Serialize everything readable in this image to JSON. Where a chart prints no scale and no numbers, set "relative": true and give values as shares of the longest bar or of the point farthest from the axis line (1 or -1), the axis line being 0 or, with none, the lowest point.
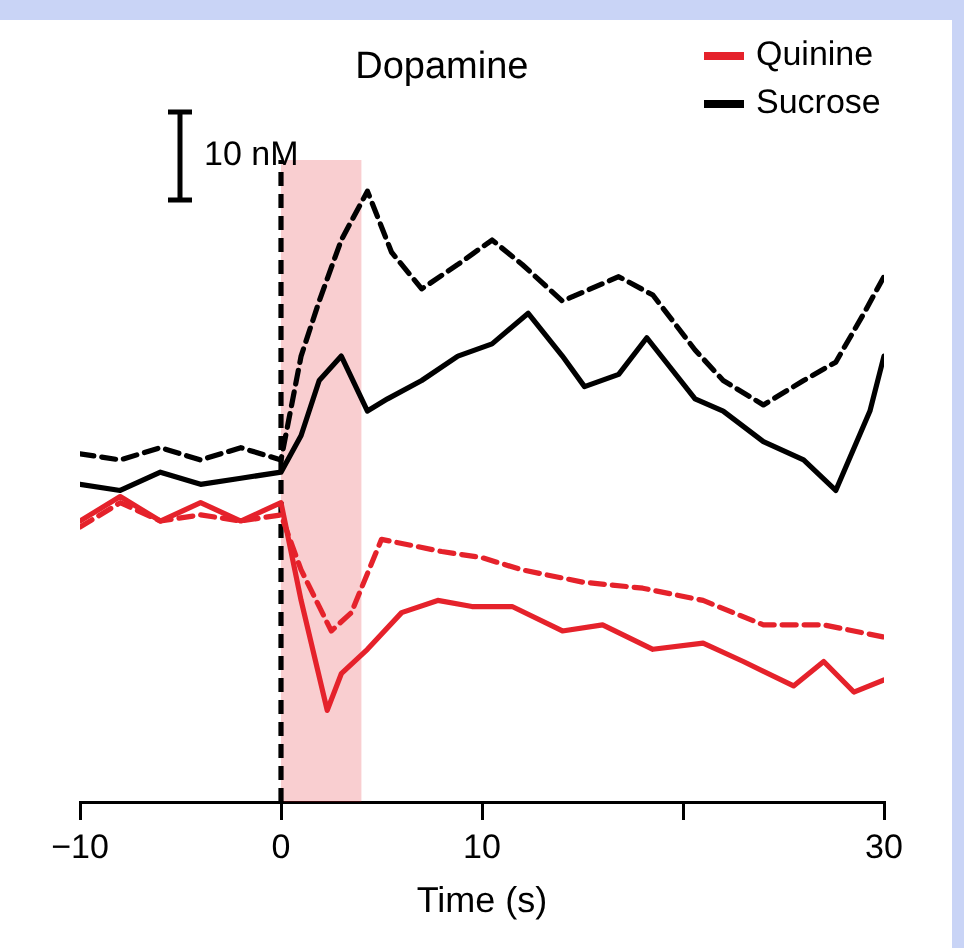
{
  "chart_data": {
    "type": "line",
    "title": "Dopamine",
    "xlabel": "Time (s)",
    "relative": true,
    "xlim": [
      -10,
      30
    ],
    "xticks": [
      {
        "value": -10,
        "label": "−10"
      },
      0,
      10,
      {
        "value": 20,
        "label": null
      },
      30
    ],
    "legend": "top right",
    "annotations": [
      "10 nM"
    ],
    "ref_lines": [
      {
        "axis": "x",
        "value": 0,
        "color": "#000000",
        "line_style": "dashed"
      }
    ],
    "bands": [
      {
        "axis": "x",
        "from": 0,
        "to": 4,
        "color": "#e5222b"
      }
    ],
    "series": [
      {
        "name": "Quinine",
        "color": "#e5222b",
        "line_style": "solid",
        "x": [
          -10,
          -8,
          -6,
          -4,
          -2,
          0,
          1,
          2.3,
          3,
          4.3,
          6,
          7.8,
          9.5,
          11.5,
          14,
          16,
          18.5,
          21,
          23,
          25.5,
          27,
          28.5,
          30
        ],
        "values": [
          0.46,
          0.5,
          0.46,
          0.49,
          0.46,
          0.49,
          0.33,
          0.15,
          0.21,
          0.25,
          0.31,
          0.33,
          0.32,
          0.32,
          0.28,
          0.29,
          0.25,
          0.26,
          0.23,
          0.19,
          0.23,
          0.18,
          0.2
        ]
      },
      {
        "color": "#e5222b",
        "line_style": "dashed",
        "x": [
          -10,
          -8,
          -6,
          -4,
          -2,
          0,
          1,
          2.5,
          3.5,
          5,
          8,
          10,
          12,
          15,
          18,
          21,
          24,
          27,
          30
        ],
        "values": [
          0.45,
          0.49,
          0.46,
          0.47,
          0.46,
          0.47,
          0.38,
          0.28,
          0.31,
          0.43,
          0.41,
          0.4,
          0.38,
          0.36,
          0.35,
          0.33,
          0.29,
          0.29,
          0.27
        ]
      },
      {
        "name": "Sucrose",
        "color": "#000000",
        "line_style": "solid",
        "x": [
          -10,
          -8,
          -6,
          -4,
          -2,
          0,
          1,
          1.9,
          3,
          4.3,
          5.3,
          7,
          8.8,
          10.5,
          12.3,
          14,
          15.1,
          16.8,
          18.2,
          20.6,
          22,
          24,
          26,
          27.6,
          29.3,
          30
        ],
        "values": [
          0.52,
          0.51,
          0.54,
          0.52,
          0.53,
          0.54,
          0.6,
          0.69,
          0.73,
          0.64,
          0.66,
          0.69,
          0.73,
          0.75,
          0.8,
          0.73,
          0.68,
          0.7,
          0.76,
          0.66,
          0.64,
          0.59,
          0.56,
          0.51,
          0.64,
          0.73
        ]
      },
      {
        "color": "#000000",
        "line_style": "dashed",
        "x": [
          -10,
          -8,
          -6,
          -4,
          -2,
          0,
          1,
          1.9,
          3,
          4.3,
          5.5,
          7,
          8.8,
          10.5,
          12,
          14,
          16.8,
          18.5,
          20.6,
          22,
          24,
          26,
          27.6,
          29,
          30
        ],
        "values": [
          0.57,
          0.56,
          0.58,
          0.56,
          0.58,
          0.56,
          0.73,
          0.82,
          0.92,
          1,
          0.9,
          0.84,
          0.88,
          0.92,
          0.88,
          0.82,
          0.86,
          0.83,
          0.74,
          0.69,
          0.65,
          0.69,
          0.72,
          0.8,
          0.86
        ]
      }
    ]
  }
}
